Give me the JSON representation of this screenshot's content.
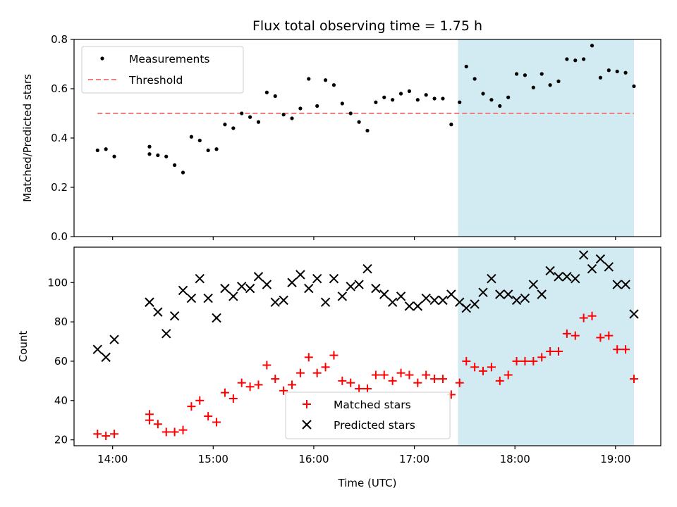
{
  "chart_data": [
    {
      "type": "scatter",
      "title": "Flux total observing time = 1.75 h",
      "xlabel": "",
      "ylabel": "Matched/Predicted stars",
      "xlim": [
        "13:37",
        "19:27"
      ],
      "ylim": [
        0,
        0.8
      ],
      "yticks": [
        0.0,
        0.2,
        0.4,
        0.6,
        0.8
      ],
      "ytick_labels": [
        "0.0",
        "0.2",
        "0.4",
        "0.6",
        "0.8"
      ],
      "xticks": [
        "14:00",
        "15:00",
        "16:00",
        "17:00",
        "18:00",
        "19:00"
      ],
      "shaded_region": {
        "from": "17:26",
        "to": "19:11",
        "color": "#add8e6"
      },
      "legend": {
        "placement": "top-left",
        "entries": [
          "Measurements",
          "Threshold"
        ]
      },
      "series": [
        {
          "name": "Measurements",
          "marker": "dot",
          "color": "#000000",
          "x": [
            "13:51",
            "13:56",
            "14:01",
            "14:22",
            "14:22",
            "14:27",
            "14:32",
            "14:37",
            "14:42",
            "14:47",
            "14:52",
            "14:57",
            "15:02",
            "15:07",
            "15:12",
            "15:17",
            "15:22",
            "15:27",
            "15:32",
            "15:37",
            "15:42",
            "15:47",
            "15:52",
            "15:57",
            "16:02",
            "16:07",
            "16:12",
            "16:17",
            "16:22",
            "16:27",
            "16:32",
            "16:37",
            "16:42",
            "16:47",
            "16:52",
            "16:57",
            "17:02",
            "17:07",
            "17:12",
            "17:17",
            "17:22",
            "17:27",
            "17:31",
            "17:36",
            "17:41",
            "17:46",
            "17:51",
            "17:56",
            "18:01",
            "18:06",
            "18:11",
            "18:16",
            "18:21",
            "18:26",
            "18:31",
            "18:36",
            "18:41",
            "18:46",
            "18:51",
            "18:56",
            "19:01",
            "19:06",
            "19:11"
          ],
          "y": [
            0.35,
            0.355,
            0.325,
            0.365,
            0.335,
            0.33,
            0.325,
            0.29,
            0.26,
            0.405,
            0.39,
            0.35,
            0.355,
            0.455,
            0.44,
            0.5,
            0.485,
            0.465,
            0.585,
            0.57,
            0.495,
            0.48,
            0.52,
            0.64,
            0.53,
            0.635,
            0.615,
            0.54,
            0.5,
            0.465,
            0.43,
            0.545,
            0.565,
            0.555,
            0.58,
            0.59,
            0.555,
            0.575,
            0.56,
            0.56,
            0.455,
            0.545,
            0.69,
            0.64,
            0.58,
            0.555,
            0.53,
            0.565,
            0.66,
            0.655,
            0.605,
            0.66,
            0.615,
            0.63,
            0.72,
            0.715,
            0.72,
            0.775,
            0.645,
            0.675,
            0.67,
            0.665,
            0.61
          ]
        },
        {
          "name": "Threshold",
          "marker": "dashed-line",
          "color": "#f08080",
          "x": [
            "13:51",
            "19:11"
          ],
          "y": [
            0.5,
            0.5
          ]
        }
      ]
    },
    {
      "type": "scatter",
      "xlabel": "Time (UTC)",
      "ylabel": "Count",
      "xlim": [
        "13:37",
        "19:27"
      ],
      "ylim": [
        17,
        118
      ],
      "yticks": [
        20,
        40,
        60,
        80,
        100
      ],
      "ytick_labels": [
        "20",
        "40",
        "60",
        "80",
        "100"
      ],
      "xticks": [
        "14:00",
        "15:00",
        "16:00",
        "17:00",
        "18:00",
        "19:00"
      ],
      "xtick_labels": [
        "14:00",
        "15:00",
        "16:00",
        "17:00",
        "18:00",
        "19:00"
      ],
      "shaded_region": {
        "from": "17:26",
        "to": "19:11",
        "color": "#add8e6"
      },
      "legend": {
        "placement": "bottom-center",
        "entries": [
          "Matched stars",
          "Predicted stars"
        ]
      },
      "series": [
        {
          "name": "Matched stars",
          "marker": "plus",
          "color": "#ff0000",
          "x": [
            "13:51",
            "13:56",
            "14:01",
            "14:22",
            "14:22",
            "14:27",
            "14:32",
            "14:37",
            "14:42",
            "14:47",
            "14:52",
            "14:57",
            "15:02",
            "15:07",
            "15:12",
            "15:17",
            "15:22",
            "15:27",
            "15:32",
            "15:37",
            "15:42",
            "15:47",
            "15:52",
            "15:57",
            "16:02",
            "16:07",
            "16:12",
            "16:17",
            "16:22",
            "16:27",
            "16:32",
            "16:37",
            "16:42",
            "16:47",
            "16:52",
            "16:57",
            "17:02",
            "17:07",
            "17:12",
            "17:17",
            "17:22",
            "17:27",
            "17:31",
            "17:36",
            "17:41",
            "17:46",
            "17:51",
            "17:56",
            "18:01",
            "18:06",
            "18:11",
            "18:16",
            "18:21",
            "18:26",
            "18:31",
            "18:36",
            "18:41",
            "18:46",
            "18:51",
            "18:56",
            "19:01",
            "19:06",
            "19:11"
          ],
          "y": [
            23,
            22,
            23,
            33,
            30,
            28,
            24,
            24,
            25,
            37,
            40,
            32,
            29,
            44,
            41,
            49,
            47,
            48,
            58,
            51,
            45,
            48,
            54,
            62,
            54,
            57,
            63,
            50,
            49,
            46,
            46,
            53,
            53,
            50,
            54,
            53,
            49,
            53,
            51,
            51,
            43,
            49,
            60,
            57,
            55,
            57,
            50,
            53,
            60,
            60,
            60,
            62,
            65,
            65,
            74,
            73,
            82,
            83,
            72,
            73,
            66,
            66,
            51
          ]
        },
        {
          "name": "Predicted stars",
          "marker": "x",
          "color": "#000000",
          "x": [
            "13:51",
            "13:56",
            "14:01",
            "14:22",
            "14:22",
            "14:27",
            "14:32",
            "14:37",
            "14:42",
            "14:47",
            "14:52",
            "14:57",
            "15:02",
            "15:07",
            "15:12",
            "15:17",
            "15:22",
            "15:27",
            "15:32",
            "15:37",
            "15:42",
            "15:47",
            "15:52",
            "15:57",
            "16:02",
            "16:07",
            "16:12",
            "16:17",
            "16:22",
            "16:27",
            "16:32",
            "16:37",
            "16:42",
            "16:47",
            "16:52",
            "16:57",
            "17:02",
            "17:07",
            "17:12",
            "17:17",
            "17:22",
            "17:27",
            "17:31",
            "17:36",
            "17:41",
            "17:46",
            "17:51",
            "17:56",
            "18:01",
            "18:06",
            "18:11",
            "18:16",
            "18:21",
            "18:26",
            "18:31",
            "18:36",
            "18:41",
            "18:46",
            "18:51",
            "18:56",
            "19:01",
            "19:06",
            "19:11"
          ],
          "y": [
            66,
            62,
            71,
            90,
            90,
            85,
            74,
            83,
            96,
            92,
            102,
            92,
            82,
            97,
            93,
            98,
            97,
            103,
            99,
            90,
            91,
            100,
            104,
            97,
            102,
            90,
            102,
            93,
            98,
            99,
            107,
            97,
            94,
            90,
            93,
            88,
            88,
            92,
            91,
            91,
            94,
            90,
            87,
            89,
            95,
            102,
            94,
            94,
            91,
            92,
            99,
            94,
            106,
            103,
            103,
            102,
            114,
            107,
            112,
            108,
            99,
            99,
            84
          ]
        }
      ]
    }
  ]
}
